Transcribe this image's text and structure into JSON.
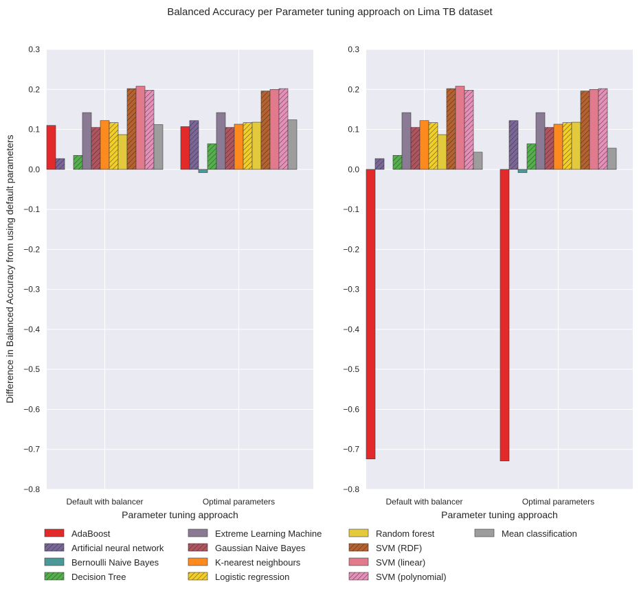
{
  "chart_data": {
    "type": "bar",
    "title": "Balanced Accuracy per Parameter tuning approach on Lima TB dataset",
    "ylabel": "Difference in Balanced Accuracy from using default parameters",
    "grid": true,
    "legend_position": "bottom",
    "categories": [
      "Default with balancer",
      "Optimal parameters"
    ],
    "ylim": [
      -0.8,
      0.3
    ],
    "yticks": [
      "−0.8",
      "−0.7",
      "−0.6",
      "−0.5",
      "−0.4",
      "−0.3",
      "−0.2",
      "−0.1",
      "0.0",
      "0.1",
      "0.2",
      "0.3"
    ],
    "ytick_values": [
      -0.8,
      -0.7,
      -0.6,
      -0.5,
      -0.4,
      -0.3,
      -0.2,
      -0.1,
      0.0,
      0.1,
      0.2,
      0.3
    ],
    "series": [
      {
        "name": "AdaBoost",
        "color": "#e32a2a",
        "hatch": false
      },
      {
        "name": "Artificial neural network",
        "color": "#7a6798",
        "hatch": true
      },
      {
        "name": "Bernoulli Naive Bayes",
        "color": "#4a9898",
        "hatch": false
      },
      {
        "name": "Decision Tree",
        "color": "#54b04c",
        "hatch": true
      },
      {
        "name": "Extreme Learning Machine",
        "color": "#8a7a93",
        "hatch": false
      },
      {
        "name": "Gaussian Naive Bayes",
        "color": "#b05560",
        "hatch": true
      },
      {
        "name": "K-nearest neighbours",
        "color": "#fd8a1e",
        "hatch": false
      },
      {
        "name": "Logistic regression",
        "color": "#f2ce2a",
        "hatch": true
      },
      {
        "name": "Random forest",
        "color": "#e3c93c",
        "hatch": false
      },
      {
        "name": "SVM (RDF)",
        "color": "#b5622f",
        "hatch": true
      },
      {
        "name": "SVM (linear)",
        "color": "#e27a8e",
        "hatch": false
      },
      {
        "name": "SVM (polynomial)",
        "color": "#e590b8",
        "hatch": true
      },
      {
        "name": "Mean classification",
        "color": "#9d9d9d",
        "hatch": false
      }
    ],
    "panels": [
      {
        "xlabel": "Parameter tuning approach",
        "values": [
          [
            0.11,
            0.027,
            0.0,
            0.035,
            0.142,
            0.105,
            0.122,
            0.117,
            0.087,
            0.202,
            0.208,
            0.198,
            0.112
          ],
          [
            0.107,
            0.122,
            -0.008,
            0.064,
            0.142,
            0.105,
            0.113,
            0.117,
            0.118,
            0.196,
            0.2,
            0.202,
            0.124
          ]
        ]
      },
      {
        "xlabel": "Parameter tuning approach",
        "values": [
          [
            -0.724,
            0.027,
            0.0,
            0.035,
            0.142,
            0.105,
            0.122,
            0.117,
            0.087,
            0.202,
            0.208,
            0.198,
            0.043
          ],
          [
            -0.729,
            0.122,
            -0.008,
            0.064,
            0.142,
            0.105,
            0.113,
            0.117,
            0.118,
            0.196,
            0.2,
            0.202,
            0.053
          ]
        ]
      }
    ]
  }
}
